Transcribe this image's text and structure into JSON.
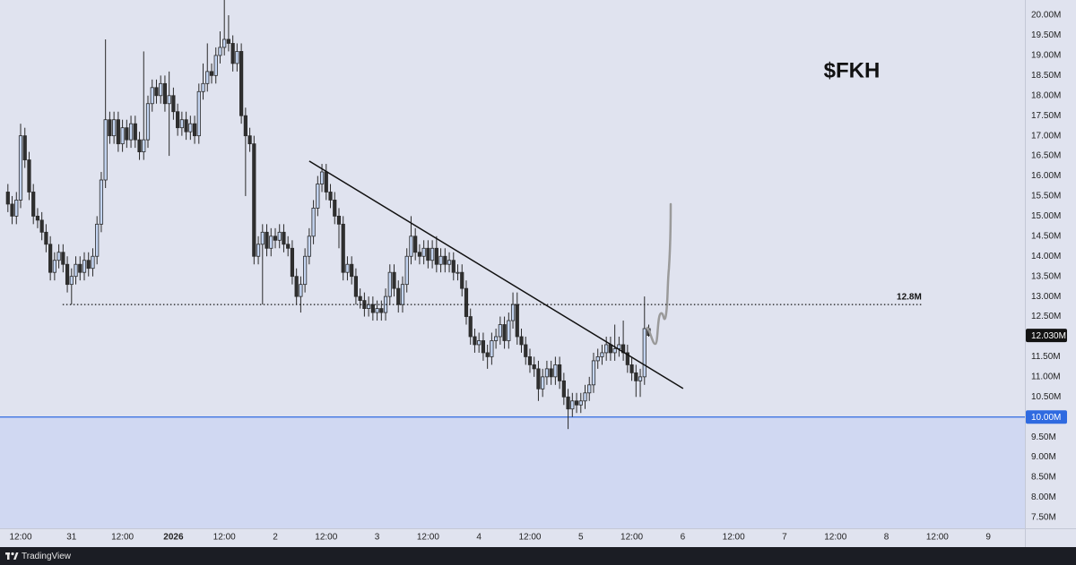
{
  "chart_data": {
    "type": "candlestick",
    "title": "$FKH",
    "x": [
      -3,
      -2,
      -1,
      0,
      1,
      2,
      3,
      4,
      5,
      6,
      7,
      8,
      9,
      10,
      11,
      12,
      13,
      14,
      15,
      16,
      17,
      18,
      19,
      20,
      21,
      22,
      23,
      24,
      25,
      26,
      27,
      28,
      29,
      30,
      31,
      32,
      33,
      34,
      35,
      36,
      37,
      38,
      39,
      40,
      41,
      42,
      43,
      44,
      45,
      46,
      47,
      48,
      49,
      50,
      51,
      52,
      53,
      54,
      55,
      56,
      57,
      58,
      59,
      60,
      61,
      62,
      63,
      64,
      65,
      66,
      67,
      68,
      69,
      70,
      71,
      72,
      73,
      74,
      75,
      76,
      77,
      78,
      79,
      80,
      81,
      82,
      83,
      84,
      85,
      86,
      87,
      88,
      89,
      90,
      91,
      92,
      93,
      94,
      95,
      96,
      97,
      98,
      99,
      100,
      101,
      102,
      103,
      104,
      105,
      106,
      107,
      108,
      109,
      110,
      111,
      112,
      113,
      114,
      115,
      116,
      117,
      118,
      119,
      120,
      121,
      122,
      123,
      124,
      125,
      126,
      127,
      128,
      129,
      130,
      131,
      132,
      133,
      134,
      135,
      136,
      137,
      138,
      139,
      140,
      141,
      142,
      143,
      144,
      145,
      146,
      147,
      148
    ],
    "open": [
      15.6,
      15.3,
      15.0,
      15.4,
      17.0,
      16.4,
      15.6,
      15.0,
      14.9,
      14.6,
      14.3,
      13.6,
      13.9,
      14.1,
      13.8,
      13.3,
      13.5,
      13.8,
      13.6,
      13.9,
      13.7,
      14.0,
      14.8,
      15.9,
      17.4,
      17.0,
      17.4,
      16.8,
      17.2,
      16.9,
      17.3,
      16.9,
      16.6,
      16.9,
      17.8,
      18.2,
      18.0,
      18.3,
      17.8,
      18.0,
      17.6,
      17.2,
      17.4,
      17.1,
      17.3,
      17.0,
      18.1,
      18.3,
      18.6,
      18.5,
      19.0,
      19.2,
      19.4,
      19.3,
      18.8,
      19.1,
      17.5,
      17.0,
      16.8,
      14.0,
      14.3,
      14.6,
      14.2,
      14.5,
      14.4,
      14.6,
      14.3,
      14.2,
      13.5,
      13.0,
      13.3,
      14.0,
      14.5,
      15.2,
      15.8,
      16.1,
      15.6,
      15.4,
      15.0,
      14.8,
      13.6,
      13.8,
      13.5,
      13.0,
      12.9,
      12.7,
      12.8,
      12.6,
      12.7,
      12.6,
      13.0,
      13.6,
      13.2,
      12.8,
      13.3,
      14.0,
      14.5,
      14.1,
      14.0,
      14.2,
      13.9,
      14.2,
      13.8,
      14.0,
      13.8,
      13.9,
      13.6,
      13.6,
      13.2,
      12.5,
      12.0,
      11.8,
      11.9,
      11.6,
      11.5,
      11.9,
      12.0,
      12.3,
      11.9,
      12.4,
      12.8,
      12.0,
      11.8,
      11.5,
      11.3,
      11.2,
      10.7,
      11.0,
      11.2,
      11.0,
      11.3,
      10.9,
      10.5,
      10.2,
      10.4,
      10.3,
      10.4,
      10.6,
      10.8,
      11.4,
      11.5,
      11.6,
      11.8,
      11.6,
      11.7,
      11.8,
      11.6,
      11.3,
      11.1,
      10.9,
      11.0,
      12.2
    ],
    "high": [
      15.8,
      15.5,
      15.6,
      17.3,
      17.2,
      16.6,
      15.8,
      15.2,
      15.1,
      14.8,
      14.5,
      14.1,
      14.3,
      14.3,
      14.0,
      13.7,
      14.0,
      14.0,
      14.1,
      14.1,
      14.2,
      15.0,
      16.1,
      19.4,
      17.6,
      17.6,
      17.6,
      17.4,
      17.4,
      17.5,
      17.5,
      17.1,
      19.1,
      18.0,
      18.4,
      18.4,
      18.5,
      18.5,
      18.6,
      18.2,
      17.8,
      17.6,
      17.6,
      17.5,
      17.5,
      18.3,
      18.8,
      19.3,
      18.8,
      19.2,
      19.6,
      20.4,
      20.0,
      19.5,
      19.3,
      19.3,
      17.7,
      17.2,
      17.0,
      14.5,
      14.8,
      14.8,
      14.7,
      14.7,
      14.8,
      14.8,
      14.5,
      14.4,
      13.7,
      13.5,
      14.2,
      14.7,
      15.4,
      16.0,
      16.3,
      16.3,
      15.8,
      15.6,
      15.2,
      15.0,
      14.0,
      14.0,
      13.7,
      13.2,
      13.1,
      13.0,
      13.0,
      12.9,
      12.9,
      13.2,
      13.8,
      13.8,
      13.4,
      13.5,
      14.2,
      15.0,
      14.7,
      14.3,
      14.4,
      14.4,
      14.4,
      14.5,
      14.2,
      14.2,
      14.1,
      14.1,
      13.8,
      13.8,
      13.4,
      12.7,
      12.2,
      12.1,
      12.1,
      11.8,
      12.1,
      12.2,
      12.5,
      12.5,
      12.6,
      13.1,
      13.1,
      12.2,
      12.0,
      11.7,
      11.5,
      11.4,
      11.2,
      11.4,
      11.4,
      11.5,
      11.5,
      11.1,
      10.7,
      10.6,
      10.6,
      10.6,
      10.8,
      11.0,
      11.6,
      11.7,
      11.8,
      12.0,
      12.0,
      12.3,
      12.0,
      12.4,
      11.8,
      11.5,
      11.3,
      11.2,
      13.0,
      12.3
    ],
    "low": [
      15.1,
      14.8,
      14.8,
      15.2,
      16.2,
      15.4,
      14.8,
      14.7,
      14.4,
      14.1,
      13.4,
      13.4,
      13.7,
      13.6,
      13.1,
      12.8,
      13.3,
      13.4,
      13.4,
      13.5,
      13.5,
      13.8,
      14.6,
      15.7,
      16.8,
      16.8,
      16.6,
      16.6,
      16.7,
      16.7,
      16.7,
      16.4,
      16.4,
      16.7,
      17.6,
      17.8,
      17.8,
      17.6,
      16.5,
      17.4,
      17.0,
      17.0,
      16.9,
      16.9,
      16.8,
      16.8,
      17.9,
      18.1,
      18.3,
      18.3,
      18.8,
      19.0,
      19.1,
      18.6,
      18.6,
      17.3,
      15.5,
      16.6,
      13.8,
      13.8,
      12.8,
      14.0,
      14.0,
      14.2,
      14.2,
      14.1,
      14.0,
      13.3,
      12.8,
      12.6,
      13.1,
      13.8,
      14.3,
      15.0,
      15.6,
      15.4,
      15.2,
      14.8,
      14.2,
      13.4,
      13.4,
      13.3,
      12.8,
      12.7,
      12.5,
      12.5,
      12.4,
      12.4,
      12.4,
      12.4,
      12.8,
      13.0,
      12.6,
      12.6,
      13.1,
      13.8,
      13.9,
      13.8,
      13.8,
      13.7,
      13.7,
      13.6,
      13.6,
      13.6,
      13.6,
      13.4,
      13.4,
      13.0,
      12.3,
      11.8,
      11.6,
      11.6,
      11.4,
      11.2,
      11.3,
      11.7,
      11.8,
      11.7,
      11.7,
      12.2,
      11.8,
      11.6,
      11.3,
      11.1,
      11.0,
      10.4,
      10.5,
      10.8,
      10.8,
      10.8,
      10.7,
      10.3,
      9.7,
      10.0,
      10.1,
      10.1,
      10.2,
      10.4,
      10.6,
      11.2,
      11.3,
      11.4,
      11.4,
      11.4,
      11.5,
      11.4,
      11.1,
      10.9,
      10.5,
      10.5,
      10.8,
      12.0
    ],
    "close": [
      15.3,
      15.0,
      15.4,
      17.0,
      16.4,
      15.6,
      15.0,
      14.9,
      14.6,
      14.3,
      13.6,
      13.9,
      14.1,
      13.8,
      13.3,
      13.5,
      13.8,
      13.6,
      13.9,
      13.7,
      14.0,
      14.8,
      15.9,
      17.4,
      17.0,
      17.4,
      16.8,
      17.2,
      16.9,
      17.3,
      16.9,
      16.6,
      16.9,
      17.8,
      18.2,
      18.0,
      18.3,
      17.8,
      18.0,
      17.6,
      17.2,
      17.4,
      17.1,
      17.3,
      17.0,
      18.1,
      18.3,
      18.6,
      18.5,
      19.0,
      19.2,
      19.4,
      19.3,
      18.8,
      19.1,
      17.5,
      17.0,
      16.8,
      14.0,
      14.3,
      14.6,
      14.2,
      14.5,
      14.4,
      14.6,
      14.3,
      14.2,
      13.5,
      13.0,
      13.3,
      14.0,
      14.5,
      15.2,
      15.8,
      16.1,
      15.6,
      15.4,
      15.0,
      14.8,
      13.6,
      13.8,
      13.5,
      13.0,
      12.9,
      12.7,
      12.8,
      12.6,
      12.7,
      12.6,
      13.0,
      13.6,
      13.2,
      12.8,
      13.3,
      14.0,
      14.5,
      14.1,
      14.0,
      14.2,
      13.9,
      14.2,
      13.8,
      14.0,
      13.8,
      13.9,
      13.6,
      13.6,
      13.2,
      12.5,
      12.0,
      11.8,
      11.9,
      11.6,
      11.5,
      11.9,
      12.0,
      12.3,
      11.9,
      12.4,
      12.8,
      12.0,
      11.8,
      11.5,
      11.3,
      11.2,
      10.7,
      11.0,
      11.2,
      11.0,
      11.3,
      10.9,
      10.5,
      10.2,
      10.4,
      10.3,
      10.4,
      10.6,
      10.8,
      11.4,
      11.5,
      11.6,
      11.8,
      11.6,
      11.7,
      11.8,
      11.6,
      11.3,
      11.1,
      10.9,
      11.0,
      12.2,
      12.03
    ],
    "up_color": "#c3d4f1",
    "down_color": "#2f2f2f",
    "wick_color": "#2a2a2a",
    "xlim": [
      -4.86,
      236.63
    ],
    "ylim": [
      7.23,
      20.38
    ],
    "xticks": [
      {
        "value": 0,
        "label": "12:00"
      },
      {
        "value": 12,
        "label": "31"
      },
      {
        "value": 24,
        "label": "12:00"
      },
      {
        "value": 36,
        "label": "2026"
      },
      {
        "value": 48,
        "label": "12:00"
      },
      {
        "value": 60,
        "label": "2"
      },
      {
        "value": 72,
        "label": "12:00"
      },
      {
        "value": 84,
        "label": "3"
      },
      {
        "value": 96,
        "label": "12:00"
      },
      {
        "value": 108,
        "label": "4"
      },
      {
        "value": 120,
        "label": "12:00"
      },
      {
        "value": 132,
        "label": "5"
      },
      {
        "value": 144,
        "label": "12:00"
      },
      {
        "value": 156,
        "label": "6"
      },
      {
        "value": 168,
        "label": "12:00"
      },
      {
        "value": 180,
        "label": "7"
      },
      {
        "value": 192,
        "label": "12:00"
      },
      {
        "value": 204,
        "label": "8"
      },
      {
        "value": 216,
        "label": "12:00"
      },
      {
        "value": 228,
        "label": "9"
      }
    ],
    "yticks": [
      {
        "value": 7.5,
        "label": "7.50M"
      },
      {
        "value": 8,
        "label": "8.00M"
      },
      {
        "value": 8.5,
        "label": "8.50M"
      },
      {
        "value": 9,
        "label": "9.00M"
      },
      {
        "value": 9.5,
        "label": "9.50M"
      },
      {
        "value": 10,
        "label": "10.00M"
      },
      {
        "value": 10.5,
        "label": "10.50M"
      },
      {
        "value": 11,
        "label": "11.00M"
      },
      {
        "value": 11.5,
        "label": "11.50M"
      },
      {
        "value": 12,
        "label": "12.00M"
      },
      {
        "value": 12.5,
        "label": "12.50M"
      },
      {
        "value": 13,
        "label": "13.00M"
      },
      {
        "value": 13.5,
        "label": "13.50M"
      },
      {
        "value": 14,
        "label": "14.00M"
      },
      {
        "value": 14.5,
        "label": "14.50M"
      },
      {
        "value": 15,
        "label": "15.00M"
      },
      {
        "value": 15.5,
        "label": "15.50M"
      },
      {
        "value": 16,
        "label": "16.00M"
      },
      {
        "value": 16.5,
        "label": "16.50M"
      },
      {
        "value": 17,
        "label": "17.00M"
      },
      {
        "value": 17.5,
        "label": "17.50M"
      },
      {
        "value": 18,
        "label": "18.00M"
      },
      {
        "value": 18.5,
        "label": "18.50M"
      },
      {
        "value": 19,
        "label": "19.00M"
      },
      {
        "value": 19.5,
        "label": "19.50M"
      },
      {
        "value": 20,
        "label": "20.00M"
      }
    ],
    "grid": false,
    "level": {
      "value": 12.8,
      "label": "12.8M",
      "x": [
        9.9,
        212.3
      ],
      "color": "#111111"
    },
    "support": {
      "value": 10,
      "label": "10.00M",
      "color": "#2f6ae0",
      "fill": "#d0d8f2"
    },
    "last_price": {
      "value": 12.03,
      "label": "12.030M",
      "color": "#131313"
    },
    "trendline": {
      "x": [
        68.0,
        156.1
      ],
      "y": [
        16.37,
        10.71
      ],
      "color": "#111111"
    }
  },
  "footer": "TradingView"
}
